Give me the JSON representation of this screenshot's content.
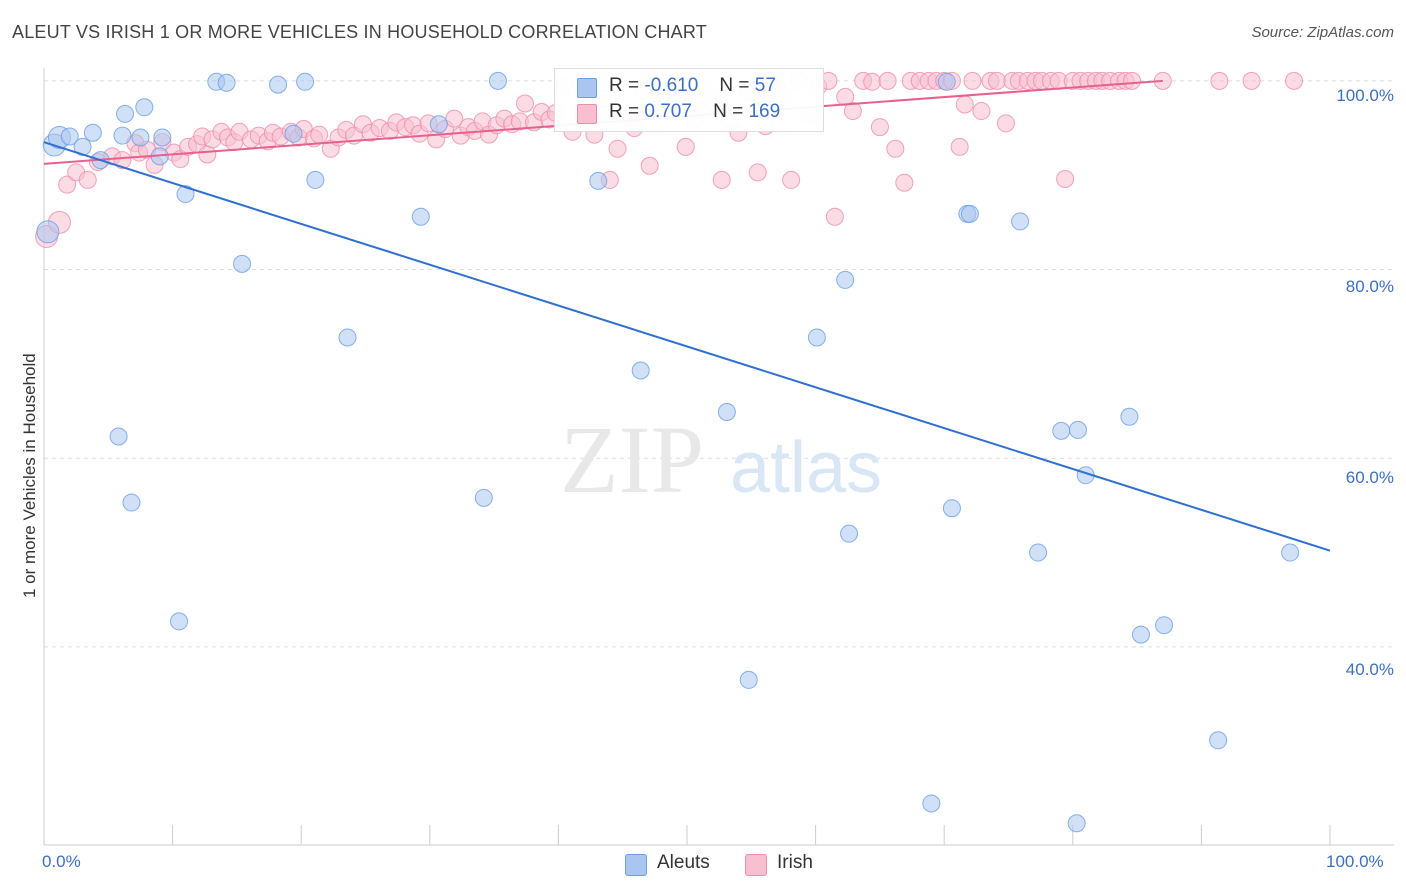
{
  "title": "ALEUT VS IRISH 1 OR MORE VEHICLES IN HOUSEHOLD CORRELATION CHART",
  "source": "Source: ZipAtlas.com",
  "watermark": {
    "zip": "ZIP",
    "atlas": "atlas"
  },
  "legend": {
    "aleut": {
      "r_label": "R =",
      "r_value": "-0.610",
      "n_label": "N =",
      "n_value": "57"
    },
    "irish": {
      "r_label": "R =",
      "r_value": "0.707",
      "n_label": "N =",
      "n_value": "169"
    }
  },
  "colors": {
    "aleut": "#6a9ee6",
    "aleut_fill": "#a9c6f0",
    "aleut_line": "#2f6fd1",
    "irish": "#f08cab",
    "irish_fill": "#f7bfd0",
    "irish_line": "#e8608f",
    "tick": "#3c6fc4"
  },
  "chart_data": {
    "type": "scatter",
    "title": "ALEUT VS IRISH 1 OR MORE VEHICLES IN HOUSEHOLD CORRELATION CHART",
    "xlabel": "",
    "ylabel": "1 or more Vehicles in Household",
    "xlim": [
      0,
      100
    ],
    "ylim": [
      19,
      102
    ],
    "x_tick_labels": [
      "0.0%",
      "100.0%"
    ],
    "y_ticks": [
      40,
      60,
      80,
      100
    ],
    "y_tick_labels": [
      "40.0%",
      "60.0%",
      "80.0%",
      "100.0%"
    ],
    "grid": true,
    "legend": [
      "Aleuts",
      "Irish"
    ],
    "series": [
      {
        "name": "Aleuts",
        "trend": {
          "x": [
            0,
            100
          ],
          "y": [
            93.5,
            50.2
          ]
        },
        "points": [
          [
            0.3,
            84
          ],
          [
            0.8,
            93.2
          ],
          [
            1.2,
            94
          ],
          [
            2,
            94.1
          ],
          [
            3,
            93
          ],
          [
            3.8,
            94.5
          ],
          [
            4.4,
            91.6
          ],
          [
            5.8,
            62.3
          ],
          [
            6.1,
            94.2
          ],
          [
            6.3,
            96.5
          ],
          [
            6.8,
            55.3
          ],
          [
            7.5,
            94
          ],
          [
            7.8,
            97.2
          ],
          [
            9,
            92
          ],
          [
            9.2,
            94
          ],
          [
            10.5,
            42.7
          ],
          [
            11,
            88
          ],
          [
            13.4,
            99.9
          ],
          [
            14.2,
            99.8
          ],
          [
            15.4,
            80.6
          ],
          [
            18.2,
            99.6
          ],
          [
            19.4,
            94.4
          ],
          [
            20.3,
            99.9
          ],
          [
            21.1,
            89.5
          ],
          [
            23.6,
            72.8
          ],
          [
            29.3,
            85.6
          ],
          [
            30.7,
            95.4
          ],
          [
            34.2,
            55.8
          ],
          [
            35.3,
            100
          ],
          [
            43.1,
            89.4
          ],
          [
            46.4,
            69.3
          ],
          [
            53.1,
            64.9
          ],
          [
            54.8,
            36.5
          ],
          [
            55.5,
            100
          ],
          [
            60.1,
            72.8
          ],
          [
            62.3,
            78.9
          ],
          [
            62.6,
            52
          ],
          [
            69,
            23.4
          ],
          [
            70.2,
            99.9
          ],
          [
            70.6,
            54.7
          ],
          [
            71.8,
            85.9
          ],
          [
            72,
            85.9
          ],
          [
            75.9,
            85.1
          ],
          [
            77.3,
            50
          ],
          [
            79.1,
            62.9
          ],
          [
            80.3,
            21.3
          ],
          [
            80.4,
            63
          ],
          [
            81,
            58.2
          ],
          [
            84.4,
            64.4
          ],
          [
            85.3,
            41.3
          ],
          [
            87.1,
            42.3
          ],
          [
            91.3,
            30.1
          ],
          [
            96.9,
            50
          ]
        ]
      },
      {
        "name": "Irish",
        "trend": {
          "x": [
            0,
            87
          ],
          "y": [
            91.2,
            100
          ]
        },
        "points": [
          [
            0.2,
            83.5
          ],
          [
            1.2,
            85
          ],
          [
            1.8,
            89
          ],
          [
            2.5,
            90.3
          ],
          [
            3.4,
            89.5
          ],
          [
            4.2,
            91.4
          ],
          [
            5.3,
            92
          ],
          [
            6.1,
            91.6
          ],
          [
            7.1,
            93.4
          ],
          [
            7.4,
            92.4
          ],
          [
            8,
            92.7
          ],
          [
            8.6,
            91.1
          ],
          [
            9.2,
            93.5
          ],
          [
            10.1,
            92.4
          ],
          [
            10.6,
            91.7
          ],
          [
            11.2,
            93
          ],
          [
            11.9,
            93.3
          ],
          [
            12.3,
            94.1
          ],
          [
            12.7,
            92.2
          ],
          [
            13.1,
            93.8
          ],
          [
            13.8,
            94.6
          ],
          [
            14.3,
            94
          ],
          [
            14.8,
            93.5
          ],
          [
            15.2,
            94.6
          ],
          [
            16.1,
            93.8
          ],
          [
            16.7,
            94.2
          ],
          [
            17.4,
            93.6
          ],
          [
            17.8,
            94.5
          ],
          [
            18.4,
            94.1
          ],
          [
            19.2,
            94.6
          ],
          [
            19.8,
            94
          ],
          [
            20.2,
            94.9
          ],
          [
            21,
            93.9
          ],
          [
            21.4,
            94.3
          ],
          [
            22.3,
            92.8
          ],
          [
            22.9,
            94
          ],
          [
            23.5,
            94.8
          ],
          [
            24.1,
            94.2
          ],
          [
            24.8,
            95.4
          ],
          [
            25.4,
            94.5
          ],
          [
            26.1,
            95
          ],
          [
            26.9,
            94.7
          ],
          [
            27.4,
            95.6
          ],
          [
            28.1,
            95.1
          ],
          [
            28.7,
            95.3
          ],
          [
            29.2,
            94.4
          ],
          [
            29.9,
            95.5
          ],
          [
            30.5,
            93.8
          ],
          [
            31.2,
            94.9
          ],
          [
            31.9,
            96
          ],
          [
            32.4,
            94.2
          ],
          [
            33,
            95.1
          ],
          [
            33.5,
            94.7
          ],
          [
            34.1,
            95.7
          ],
          [
            34.6,
            94.3
          ],
          [
            35.2,
            95.3
          ],
          [
            35.8,
            96
          ],
          [
            36.4,
            95.4
          ],
          [
            37,
            95.7
          ],
          [
            37.4,
            97.6
          ],
          [
            38.1,
            95.6
          ],
          [
            38.7,
            96.7
          ],
          [
            39.3,
            95.9
          ],
          [
            39.8,
            96.6
          ],
          [
            40.5,
            99.3
          ],
          [
            41.1,
            94.6
          ],
          [
            41.7,
            96.6
          ],
          [
            42.2,
            97.8
          ],
          [
            42.8,
            94.3
          ],
          [
            43.5,
            98.1
          ],
          [
            44,
            89.5
          ],
          [
            44.6,
            92.8
          ],
          [
            45.4,
            96.3
          ],
          [
            45.9,
            95
          ],
          [
            46.6,
            99
          ],
          [
            47.1,
            91
          ],
          [
            47.8,
            97
          ],
          [
            48.5,
            99.3
          ],
          [
            49.2,
            98.1
          ],
          [
            49.9,
            93
          ],
          [
            50.6,
            96
          ],
          [
            51.3,
            99.3
          ],
          [
            52,
            97.6
          ],
          [
            52.7,
            89.5
          ],
          [
            53.3,
            96
          ],
          [
            54,
            94.5
          ],
          [
            54.8,
            98.8
          ],
          [
            55.5,
            90.3
          ],
          [
            56.1,
            95.2
          ],
          [
            56.8,
            99.2
          ],
          [
            57.4,
            98.6
          ],
          [
            58.1,
            89.5
          ],
          [
            58.7,
            100
          ],
          [
            59.5,
            96.4
          ],
          [
            60.2,
            99.4
          ],
          [
            61,
            100
          ],
          [
            61.5,
            85.6
          ],
          [
            62.3,
            98.3
          ],
          [
            62.9,
            96.8
          ],
          [
            63.7,
            100
          ],
          [
            64.4,
            99.9
          ],
          [
            65,
            95.1
          ],
          [
            65.6,
            100
          ],
          [
            66.2,
            92.8
          ],
          [
            66.9,
            89.2
          ],
          [
            67.4,
            100
          ],
          [
            68.1,
            100
          ],
          [
            68.8,
            100
          ],
          [
            69.4,
            100
          ],
          [
            70,
            100
          ],
          [
            70.6,
            100
          ],
          [
            71.2,
            93
          ],
          [
            71.6,
            97.5
          ],
          [
            72.2,
            100
          ],
          [
            72.9,
            96.8
          ],
          [
            73.6,
            100
          ],
          [
            74.1,
            100
          ],
          [
            74.8,
            95.5
          ],
          [
            75.3,
            100
          ],
          [
            75.8,
            100
          ],
          [
            76.5,
            100
          ],
          [
            77.1,
            100
          ],
          [
            77.6,
            100
          ],
          [
            78.3,
            100
          ],
          [
            78.9,
            100
          ],
          [
            79.4,
            89.6
          ],
          [
            80,
            100
          ],
          [
            80.6,
            100
          ],
          [
            81.2,
            100
          ],
          [
            81.8,
            100
          ],
          [
            82.3,
            100
          ],
          [
            82.9,
            100
          ],
          [
            83.6,
            100
          ],
          [
            84.1,
            100
          ],
          [
            84.6,
            100
          ],
          [
            87,
            100
          ],
          [
            91.4,
            100
          ],
          [
            93.9,
            100
          ],
          [
            97.2,
            100
          ]
        ]
      }
    ]
  }
}
